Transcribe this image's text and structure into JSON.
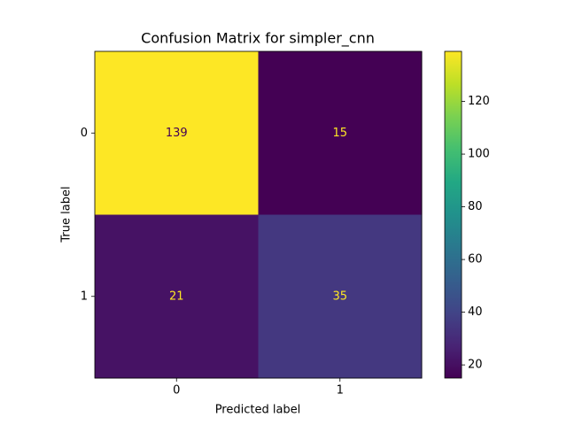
{
  "chart_data": {
    "type": "heatmap",
    "title": "Confusion Matrix for simpler_cnn",
    "xlabel": "Predicted label",
    "ylabel": "True label",
    "x_categories": [
      "0",
      "1"
    ],
    "y_categories": [
      "0",
      "1"
    ],
    "values": [
      [
        139,
        15
      ],
      [
        21,
        35
      ]
    ],
    "colormap": "viridis",
    "clim": [
      15,
      139
    ],
    "cticks": [
      20,
      40,
      60,
      80,
      100,
      120
    ]
  }
}
